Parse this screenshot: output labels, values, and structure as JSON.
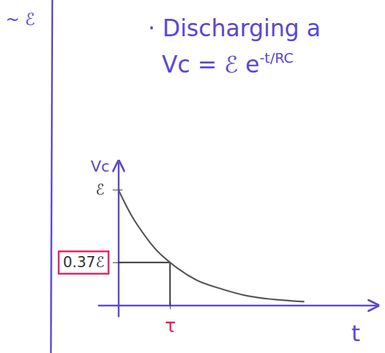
{
  "chart_data": {
    "type": "line",
    "title": "· Discharging a",
    "equation": {
      "base": "Vc = ℰ e",
      "exponent": "-t/RC"
    },
    "annotations": [
      "~ ℰ"
    ],
    "x_label": "t",
    "y_label": "Vc",
    "x": [
      0,
      0.25,
      0.5,
      0.75,
      1,
      1.5,
      2,
      2.5,
      3,
      3.6
    ],
    "values": [
      1,
      0.78,
      0.61,
      0.47,
      0.37,
      0.22,
      0.14,
      0.08,
      0.05,
      0.03
    ],
    "color": "#555555",
    "xlim": [
      -0.4,
      5
    ],
    "ylim": [
      -0.1,
      1.24
    ],
    "xticks": [
      {
        "value": 1,
        "label": "τ"
      }
    ],
    "yticks": [
      {
        "value": 1,
        "label": "ℰ"
      },
      {
        "value": 0.37,
        "label": "0.37ℰ"
      }
    ]
  }
}
